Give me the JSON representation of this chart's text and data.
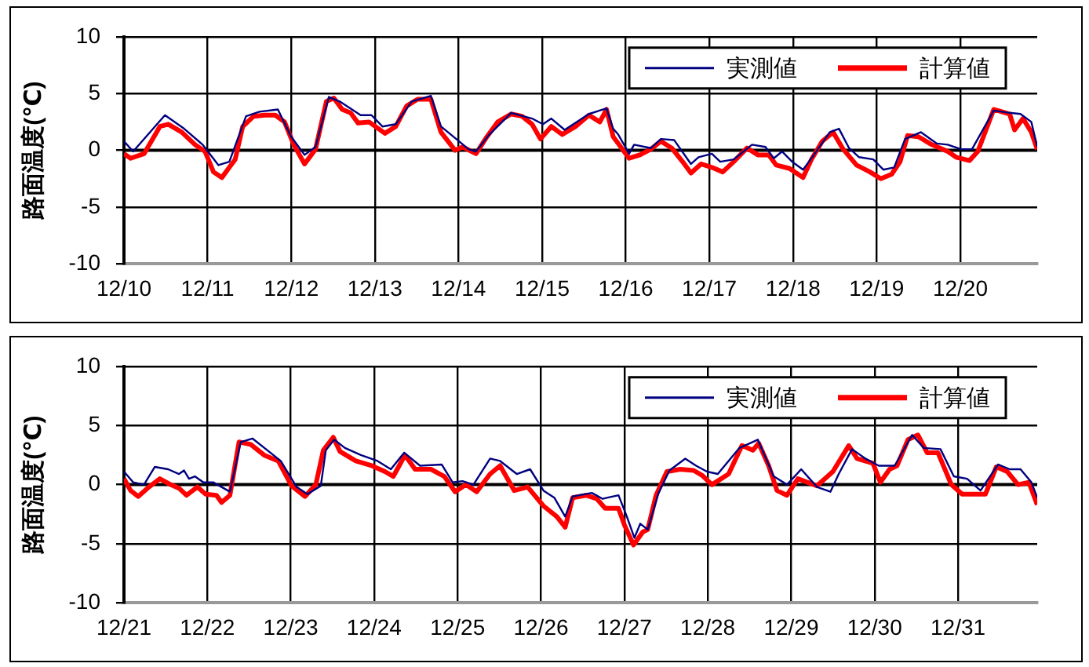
{
  "chart_data": [
    {
      "type": "line",
      "ylabel": "路面温度(℃)",
      "xlim": [
        "--12-10T00:00",
        "--12-20T22:05"
      ],
      "ylim": [
        -10,
        10
      ],
      "yticks": [
        -10,
        -5,
        0,
        5,
        10
      ],
      "xticks": [
        {
          "value": "--12-10",
          "label": "12/10"
        },
        {
          "value": "--12-11",
          "label": "12/11"
        },
        {
          "value": "--12-12",
          "label": "12/12"
        },
        {
          "value": "--12-13",
          "label": "12/13"
        },
        {
          "value": "--12-14",
          "label": "12/14"
        },
        {
          "value": "--12-15",
          "label": "12/15"
        },
        {
          "value": "--12-16",
          "label": "12/16"
        },
        {
          "value": "--12-17",
          "label": "12/17"
        },
        {
          "value": "--12-18",
          "label": "12/18"
        },
        {
          "value": "--12-19",
          "label": "12/19"
        },
        {
          "value": "--12-20",
          "label": "12/20"
        }
      ],
      "grid": true,
      "legend": "top right",
      "ref_lines": [
        {
          "axis": "y",
          "value": 0,
          "color": "#000000"
        }
      ],
      "series": [
        {
          "name": "実測値",
          "color": "#000080",
          "x": [
            "--12-10T00:00",
            "--12-10T02:38",
            "--12-10T11:46",
            "--12-10T17:17",
            "--12-10T22:34",
            "--12-11T03:07",
            "--12-11T06:14",
            "--12-11T11:02",
            "--12-11T14:53",
            "--12-11T20:10",
            "--12-12T00:00",
            "--12-12T03:50",
            "--12-12T06:58",
            "--12-12T10:48",
            "--12-12T13:55",
            "--12-12T19:55",
            "--12-12T23:02",
            "--12-13T02:10",
            "--12-13T06:00",
            "--12-13T10:34",
            "--12-13T16:05",
            "--12-13T18:58",
            "--12-13T23:46",
            "--12-14T02:53",
            "--12-14T05:02",
            "--12-14T08:53",
            "--12-14T15:07",
            "--12-14T21:07",
            "--12-15T00:14",
            "--12-15T02:38",
            "--12-15T06:29",
            "--12-15T13:26",
            "--12-15T18:29",
            "--12-15T20:24",
            "--12-15T21:50",
            "--12-16T00:58",
            "--12-16T02:24",
            "--12-16T07:12",
            "--12-16T10:05",
            "--12-16T13:55",
            "--12-16T18:43",
            "--12-16T20:53",
            "--12-17T00:43",
            "--12-17T03:07",
            "--12-17T06:58",
            "--12-17T12:14",
            "--12-17T16:05",
            "--12-17T18:29",
            "--12-17T20:53",
            "--12-17T23:46",
            "--12-18T02:53",
            "--12-18T06:00",
            "--12-18T10:34",
            "--12-18T13:12",
            "--12-18T16:05",
            "--12-18T18:58",
            "--12-18T23:02",
            "--12-19T01:55",
            "--12-19T05:02",
            "--12-19T08:10",
            "--12-19T12:43",
            "--12-19T17:17",
            "--12-19T20:24",
            "--12-20T00:14",
            "--12-20T03:22",
            "--12-20T09:36",
            "--12-20T14:10",
            "--12-20T17:17",
            "--12-20T20:24",
            "--12-20T22:05"
          ],
          "values": [
            0.8,
            -0.1,
            3.1,
            1.9,
            0.5,
            -1.3,
            -1.0,
            3.0,
            3.4,
            3.6,
            1.2,
            -0.4,
            0.3,
            4.7,
            4.3,
            3.1,
            3.1,
            2.1,
            2.3,
            4.3,
            4.8,
            2.1,
            0.9,
            0.1,
            -0.1,
            1.4,
            3.3,
            2.8,
            2.3,
            2.8,
            1.8,
            3.2,
            3.7,
            1.9,
            1.4,
            -0.3,
            0.5,
            0.2,
            1.0,
            0.9,
            -1.2,
            -0.6,
            -0.3,
            -1.0,
            -0.8,
            0.5,
            0.3,
            -0.7,
            -0.1,
            -1.0,
            -1.7,
            -0.4,
            1.6,
            1.9,
            0.2,
            -0.6,
            -0.8,
            -1.7,
            -1.5,
            1.0,
            1.6,
            0.6,
            0.5,
            0.1,
            0.1,
            3.5,
            3.3,
            3.2,
            2.5,
            0.3
          ]
        },
        {
          "name": "計算値",
          "color": "#ff0000",
          "x": [
            "--12-10T00:00",
            "--12-10T01:55",
            "--12-10T05:46",
            "--12-10T10:19",
            "--12-10T12:43",
            "--12-10T16:34",
            "--12-10T20:24",
            "--12-10T23:17",
            "--12-11T01:41",
            "--12-11T04:05",
            "--12-11T06:14",
            "--12-11T07:55",
            "--12-11T10:05",
            "--12-11T13:12",
            "--12-11T16:19",
            "--12-11T19:26",
            "--12-11T22:05",
            "--12-12T00:43",
            "--12-12T03:50",
            "--12-12T06:58",
            "--12-12T10:05",
            "--12-12T12:14",
            "--12-12T14:38",
            "--12-12T17:02",
            "--12-12T19:12",
            "--12-12T22:19",
            "--12-13T02:53",
            "--12-13T06:00",
            "--12-13T09:07",
            "--12-13T12:14",
            "--12-13T16:05",
            "--12-13T18:58",
            "--12-13T23:02",
            "--12-14T01:12",
            "--12-14T05:02",
            "--12-14T08:10",
            "--12-14T11:17",
            "--12-14T15:07",
            "--12-14T18:14",
            "--12-14T21:07",
            "--12-14T23:31",
            "--12-15T02:38",
            "--12-15T05:46",
            "--12-15T09:36",
            "--12-15T13:26",
            "--12-15T16:34",
            "--12-15T18:29",
            "--12-15T20:24",
            "--12-16T00:58",
            "--12-16T04:05",
            "--12-16T07:12",
            "--12-16T10:05",
            "--12-16T13:12",
            "--12-16T16:19",
            "--12-16T18:43",
            "--12-16T21:36",
            "--12-17T00:43",
            "--12-17T03:50",
            "--12-17T06:58",
            "--12-17T10:48",
            "--12-17T13:55",
            "--12-17T17:02",
            "--12-17T19:12",
            "--12-17T23:02",
            "--12-18T02:53",
            "--12-18T05:17",
            "--12-18T08:24",
            "--12-18T11:31",
            "--12-18T14:24",
            "--12-18T18:14",
            "--12-18T22:05",
            "--12-19T01:12",
            "--12-19T04:19",
            "--12-19T06:43",
            "--12-19T08:53",
            "--12-19T12:00",
            "--12-19T15:50",
            "--12-19T20:24",
            "--12-19T22:48",
            "--12-20T02:38",
            "--12-20T05:02",
            "--12-20T09:36",
            "--12-20T14:10",
            "--12-20T15:36",
            "--12-20T18:00",
            "--12-20T20:24",
            "--12-20T22:05"
          ],
          "values": [
            -0.3,
            -0.7,
            -0.3,
            2.1,
            2.3,
            1.6,
            0.5,
            -0.1,
            -1.9,
            -2.4,
            -1.5,
            -0.8,
            2.1,
            3.0,
            3.1,
            3.1,
            2.5,
            0.5,
            -1.2,
            0.1,
            4.3,
            4.6,
            3.6,
            3.3,
            2.4,
            2.5,
            1.5,
            2.1,
            3.9,
            4.5,
            4.5,
            1.6,
            0.0,
            0.3,
            -0.3,
            1.2,
            2.5,
            3.2,
            3.0,
            2.3,
            1.0,
            2.1,
            1.4,
            2.1,
            3.1,
            2.5,
            3.6,
            1.2,
            -0.7,
            -0.4,
            0.1,
            0.8,
            0.2,
            -1.0,
            -2.0,
            -1.2,
            -1.5,
            -1.9,
            -1.0,
            0.2,
            -0.4,
            -0.4,
            -1.3,
            -1.6,
            -2.4,
            -0.8,
            0.8,
            1.6,
            0.1,
            -1.3,
            -1.9,
            -2.5,
            -2.1,
            -1.0,
            1.3,
            1.2,
            0.5,
            -0.1,
            -0.6,
            -0.9,
            -0.1,
            3.6,
            3.2,
            1.8,
            2.8,
            1.6,
            0.1
          ]
        }
      ]
    },
    {
      "type": "line",
      "ylabel": "路面温度(℃)",
      "xlim": [
        "--12-21T00:00",
        "--12-31T22:48"
      ],
      "ylim": [
        -10,
        10
      ],
      "yticks": [
        -10,
        -5,
        0,
        5,
        10
      ],
      "xticks": [
        {
          "value": "--12-21",
          "label": "12/21"
        },
        {
          "value": "--12-22",
          "label": "12/22"
        },
        {
          "value": "--12-23",
          "label": "12/23"
        },
        {
          "value": "--12-24",
          "label": "12/24"
        },
        {
          "value": "--12-25",
          "label": "12/25"
        },
        {
          "value": "--12-26",
          "label": "12/26"
        },
        {
          "value": "--12-27",
          "label": "12/27"
        },
        {
          "value": "--12-28",
          "label": "12/28"
        },
        {
          "value": "--12-29",
          "label": "12/29"
        },
        {
          "value": "--12-30",
          "label": "12/30"
        },
        {
          "value": "--12-31",
          "label": "12/31"
        }
      ],
      "grid": true,
      "legend": "top right",
      "ref_lines": [
        {
          "axis": "y",
          "value": 0,
          "color": "#000000"
        }
      ],
      "series": [
        {
          "name": "実測値",
          "color": "#000080",
          "x": [
            "--12-21T00:00",
            "--12-21T02:38",
            "--12-21T05:46",
            "--12-21T08:53",
            "--12-21T12:43",
            "--12-21T15:50",
            "--12-21T17:17",
            "--12-21T18:43",
            "--12-21T20:24",
            "--12-21T22:48",
            "--12-22T01:41",
            "--12-22T06:29",
            "--12-22T09:36",
            "--12-22T12:58",
            "--12-22T17:17",
            "--12-22T21:07",
            "--12-23T01:41",
            "--12-23T04:48",
            "--12-23T08:38",
            "--12-23T10:05",
            "--12-23T12:29",
            "--12-23T15:36",
            "--12-23T20:10",
            "--12-24T00:58",
            "--12-24T04:48",
            "--12-24T08:38",
            "--12-24T13:12",
            "--12-24T19:26",
            "--12-24T22:34",
            "--12-25T01:26",
            "--12-25T04:34",
            "--12-25T09:22",
            "--12-25T12:14",
            "--12-25T17:02",
            "--12-25T20:53",
            "--12-26T00:43",
            "--12-26T03:50",
            "--12-26T06:58",
            "--12-26T09:07",
            "--12-26T14:38",
            "--12-26T17:46",
            "--12-26T19:12",
            "--12-26T22:19",
            "--12-27T00:43",
            "--12-27T02:53",
            "--12-27T04:34",
            "--12-27T06:43",
            "--12-27T09:50",
            "--12-27T12:58",
            "--12-27T17:31",
            "--12-27T20:38",
            "--12-27T23:46",
            "--12-28T02:53",
            "--12-28T09:07",
            "--12-28T14:24",
            "--12-28T18:58",
            "--12-28T22:48",
            "--12-29T02:53",
            "--12-29T07:26",
            "--12-29T11:17",
            "--12-29T13:41",
            "--12-29T17:31",
            "--12-29T21:22",
            "--12-30T01:12",
            "--12-30T05:46",
            "--12-30T10:48",
            "--12-30T14:10",
            "--12-30T18:58",
            "--12-30T22:48",
            "--12-31T02:38",
            "--12-31T06:29",
            "--12-31T11:31",
            "--12-31T14:53",
            "--12-31T18:00",
            "--12-31T21:07",
            "--12-31T22:48"
          ],
          "values": [
            1.1,
            0.2,
            0.0,
            1.5,
            1.3,
            0.9,
            1.2,
            0.5,
            0.7,
            0.2,
            0.2,
            -0.6,
            3.6,
            3.9,
            2.9,
            2.0,
            -0.2,
            -0.8,
            -0.1,
            2.9,
            3.8,
            3.1,
            2.5,
            2.0,
            1.3,
            2.7,
            1.6,
            1.7,
            0.2,
            0.3,
            0.0,
            2.2,
            2.0,
            0.9,
            1.3,
            -0.5,
            -1.1,
            -2.7,
            -1.0,
            -0.7,
            -1.2,
            -1.1,
            -0.9,
            -2.7,
            -4.5,
            -3.3,
            -3.8,
            -0.7,
            1.2,
            2.2,
            1.6,
            1.1,
            0.9,
            3.1,
            3.8,
            0.7,
            0.0,
            1.3,
            -0.2,
            -0.6,
            0.9,
            3.0,
            2.2,
            1.6,
            1.6,
            4.2,
            3.1,
            3.0,
            0.7,
            0.5,
            -0.5,
            1.7,
            1.3,
            1.3,
            0.2,
            -1.1
          ]
        },
        {
          "name": "計算値",
          "color": "#ff0000",
          "x": [
            "--12-21T00:00",
            "--12-21T01:55",
            "--12-21T04:05",
            "--12-21T07:12",
            "--12-21T10:19",
            "--12-21T13:26",
            "--12-21T15:50",
            "--12-21T18:00",
            "--12-21T21:07",
            "--12-21T23:31",
            "--12-22T02:38",
            "--12-22T04:05",
            "--12-22T06:29",
            "--12-22T09:07",
            "--12-22T12:29",
            "--12-22T16:19",
            "--12-22T20:24",
            "--12-23T00:14",
            "--12-23T04:05",
            "--12-23T07:12",
            "--12-23T09:22",
            "--12-23T12:14",
            "--12-23T14:10",
            "--12-23T18:43",
            "--12-23T23:17",
            "--12-24T03:07",
            "--12-24T05:31",
            "--12-24T08:53",
            "--12-24T11:46",
            "--12-24T16:19",
            "--12-24T20:10",
            "--12-24T23:17",
            "--12-25T02:24",
            "--12-25T05:31",
            "--12-25T09:22",
            "--12-25T12:14",
            "--12-25T16:19",
            "--12-25T20:10",
            "--12-26T00:43",
            "--12-26T04:34",
            "--12-26T06:58",
            "--12-26T09:07",
            "--12-26T12:58",
            "--12-26T16:05",
            "--12-26T18:29",
            "--12-26T22:19",
            "--12-27T00:00",
            "--12-27T02:38",
            "--12-27T05:17",
            "--12-27T06:43",
            "--12-27T09:07",
            "--12-27T12:14",
            "--12-27T16:05",
            "--12-27T19:55",
            "--12-27T22:19",
            "--12-28T01:12",
            "--12-28T06:00",
            "--12-28T09:50",
            "--12-28T12:58",
            "--12-28T14:38",
            "--12-28T17:31",
            "--12-28T19:55",
            "--12-28T22:48",
            "--12-29T01:55",
            "--12-29T07:26",
            "--12-29T12:00",
            "--12-29T16:34",
            "--12-29T18:58",
            "--12-29T23:31",
            "--12-30T01:41",
            "--12-30T04:19",
            "--12-30T06:29",
            "--12-30T09:36",
            "--12-30T12:29",
            "--12-30T15:07",
            "--12-30T18:14",
            "--12-30T22:05",
            "--12-31T01:12",
            "--12-31T04:05",
            "--12-31T07:55",
            "--12-31T11:02",
            "--12-31T14:10",
            "--12-31T17:17",
            "--12-31T20:24",
            "--12-31T22:48"
          ],
          "values": [
            0.5,
            -0.5,
            -1.0,
            -0.2,
            0.5,
            0.0,
            -0.3,
            -0.9,
            -0.2,
            -0.8,
            -0.9,
            -1.5,
            -0.9,
            3.6,
            3.4,
            2.5,
            2.0,
            -0.1,
            -1.0,
            0.0,
            2.9,
            4.0,
            2.8,
            2.0,
            1.6,
            1.1,
            0.7,
            2.5,
            1.3,
            1.3,
            0.7,
            -0.6,
            0.0,
            -0.6,
            0.9,
            1.6,
            -0.5,
            -0.2,
            -1.8,
            -2.7,
            -3.6,
            -1.1,
            -0.9,
            -1.2,
            -2.0,
            -2.0,
            -3.4,
            -5.1,
            -4.0,
            -3.8,
            -0.9,
            1.1,
            1.3,
            1.2,
            0.8,
            0.0,
            0.9,
            3.3,
            2.9,
            3.5,
            1.6,
            -0.5,
            -0.9,
            0.5,
            -0.1,
            1.1,
            3.3,
            2.2,
            1.8,
            0.2,
            1.3,
            1.6,
            3.8,
            4.2,
            2.7,
            2.7,
            0.0,
            -0.8,
            -0.8,
            -0.8,
            1.5,
            1.1,
            0.0,
            0.2,
            -1.7
          ]
        }
      ]
    }
  ]
}
